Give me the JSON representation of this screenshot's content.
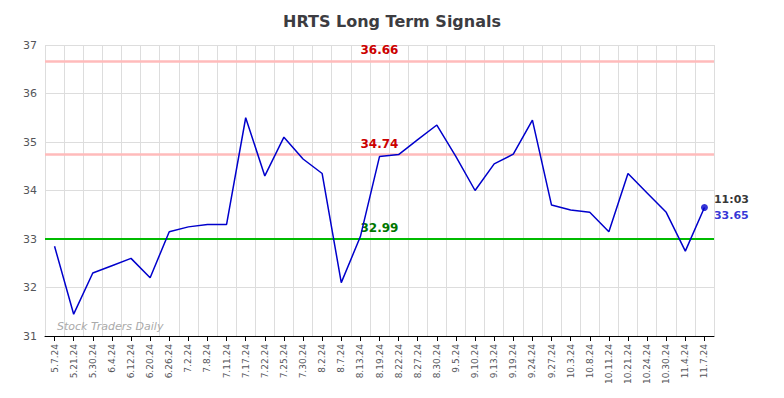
{
  "chart_data": {
    "type": "line",
    "title": "HRTS Long Term Signals",
    "categories": [
      "5.7.24",
      "5.21.24",
      "5.30.24",
      "6.4.24",
      "6.12.24",
      "6.20.24",
      "6.26.24",
      "7.2.24",
      "7.8.24",
      "7.11.24",
      "7.17.24",
      "7.22.24",
      "7.25.24",
      "7.30.24",
      "8.2.24",
      "8.7.24",
      "8.13.24",
      "8.19.24",
      "8.22.24",
      "8.27.24",
      "8.30.24",
      "9.5.24",
      "9.10.24",
      "9.13.24",
      "9.19.24",
      "9.24.24",
      "9.27.24",
      "10.3.24",
      "10.8.24",
      "10.11.24",
      "10.21.24",
      "10.24.24",
      "10.30.24",
      "11.4.24",
      "11.7.24"
    ],
    "values": [
      32.85,
      31.45,
      32.3,
      32.45,
      32.6,
      32.2,
      33.15,
      33.25,
      33.3,
      33.3,
      35.5,
      34.3,
      35.1,
      34.65,
      34.35,
      32.1,
      33.05,
      34.7,
      34.74,
      35.05,
      35.35,
      34.7,
      34.0,
      34.55,
      34.75,
      35.45,
      33.7,
      33.6,
      33.55,
      33.15,
      34.35,
      33.95,
      33.55,
      32.75,
      33.65
    ],
    "color": "#0000cc",
    "ylim": [
      31,
      37
    ],
    "yticks": [
      31,
      32,
      33,
      34,
      35,
      36,
      37
    ],
    "grid": true,
    "reference_lines": [
      {
        "value": 36.66,
        "color": "#ffbbbb",
        "label": "36.66",
        "label_color": "#cc0000"
      },
      {
        "value": 34.74,
        "color": "#ffbbbb",
        "label": "34.74",
        "label_color": "#cc0000"
      },
      {
        "value": 33.0,
        "color": "#00bb00",
        "label": "32.99",
        "label_color": "#007700"
      }
    ],
    "last_point": {
      "time": "11:03",
      "price": "33.65",
      "color": "#0000cc"
    },
    "watermark": {
      "text": "Stock Traders Daily",
      "color": "#aaaaaa"
    }
  }
}
